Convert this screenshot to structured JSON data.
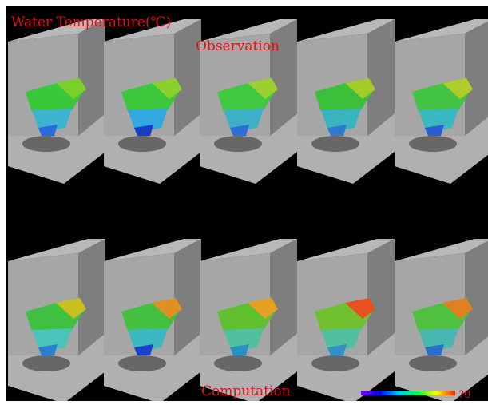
{
  "figure": {
    "title": "Water Temperature(℃)",
    "row_labels": [
      "Observation",
      "Computation"
    ],
    "colorbar_label": "?0",
    "colors": {
      "background": "#000000",
      "wall": "#9c9c9c",
      "floor": "#b4b4b4",
      "text": "#e01010"
    },
    "panels_per_row": 5,
    "rows": 2
  }
}
